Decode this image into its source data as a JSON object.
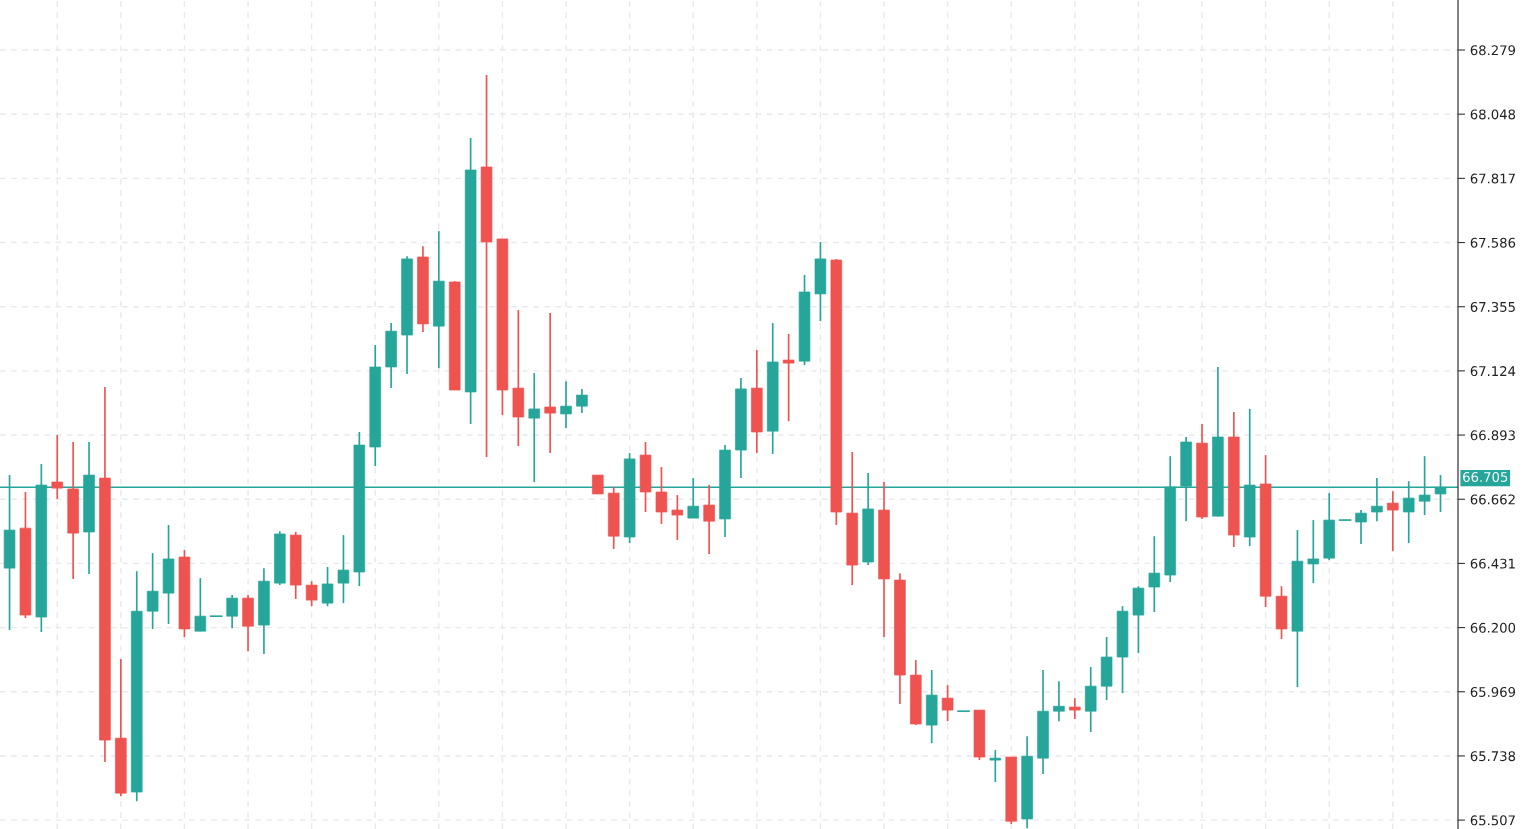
{
  "chart_data": {
    "type": "candlestick",
    "categories": [
      null,
      null,
      null,
      null,
      null,
      null,
      null,
      null,
      null,
      null,
      null,
      null,
      null,
      null,
      null,
      null,
      null,
      null,
      null,
      null,
      null,
      null,
      null,
      null,
      null,
      null,
      null,
      null,
      null,
      null,
      null,
      null,
      null,
      null,
      null,
      null,
      null,
      null,
      null,
      null,
      null,
      null,
      null,
      null,
      null,
      null,
      null,
      null,
      null,
      null,
      null,
      null,
      null,
      null,
      null,
      null,
      null,
      null,
      null,
      null,
      null,
      null,
      null,
      null,
      null,
      null,
      null,
      null,
      null,
      null,
      null,
      null,
      null,
      null,
      null,
      null,
      null,
      null,
      null,
      null,
      null,
      null,
      null,
      null,
      null,
      null,
      null,
      null,
      null,
      null,
      null
    ],
    "ohlc": [
      [
        66.414,
        66.749,
        66.191,
        66.551
      ],
      [
        66.558,
        66.688,
        66.234,
        66.245
      ],
      [
        66.238,
        66.789,
        66.184,
        66.713
      ],
      [
        66.724,
        66.893,
        66.663,
        66.702
      ],
      [
        66.699,
        66.868,
        66.375,
        66.54
      ],
      [
        66.544,
        66.868,
        66.393,
        66.749
      ],
      [
        66.738,
        67.066,
        65.716,
        65.795
      ],
      [
        65.802,
        66.087,
        65.593,
        65.604
      ],
      [
        65.608,
        66.403,
        65.575,
        66.259
      ],
      [
        66.259,
        66.468,
        66.195,
        66.331
      ],
      [
        66.324,
        66.569,
        66.213,
        66.447
      ],
      [
        66.454,
        66.479,
        66.166,
        66.195
      ],
      [
        66.187,
        66.378,
        66.187,
        66.241
      ],
      [
        66.241,
        66.241,
        66.241,
        66.241
      ],
      [
        66.241,
        66.317,
        66.198,
        66.306
      ],
      [
        66.306,
        66.317,
        66.115,
        66.205
      ],
      [
        66.209,
        66.414,
        66.105,
        66.367
      ],
      [
        66.36,
        66.547,
        66.353,
        66.537
      ],
      [
        66.533,
        66.544,
        66.303,
        66.353
      ],
      [
        66.353,
        66.367,
        66.277,
        66.299
      ],
      [
        66.288,
        66.418,
        66.277,
        66.357
      ],
      [
        66.36,
        66.533,
        66.288,
        66.407
      ],
      [
        66.4,
        66.904,
        66.349,
        66.857
      ],
      [
        66.85,
        67.217,
        66.781,
        67.138
      ],
      [
        67.138,
        67.296,
        67.062,
        67.267
      ],
      [
        67.253,
        67.537,
        67.113,
        67.527
      ],
      [
        67.534,
        67.573,
        67.264,
        67.293
      ],
      [
        67.285,
        67.627,
        67.134,
        67.447
      ],
      [
        67.444,
        67.447,
        67.055,
        67.055
      ],
      [
        67.048,
        67.962,
        66.933,
        67.847
      ],
      [
        67.858,
        68.189,
        66.814,
        67.588
      ],
      [
        67.599,
        67.599,
        66.965,
        67.055
      ],
      [
        67.062,
        67.343,
        66.853,
        66.958
      ],
      [
        66.954,
        67.116,
        66.724,
        66.987
      ],
      [
        66.994,
        67.332,
        66.828,
        66.972
      ],
      [
        66.969,
        67.087,
        66.918,
        66.997
      ],
      [
        66.997,
        67.059,
        66.972,
        67.037
      ],
      [
        66.749,
        66.749,
        66.681,
        66.681
      ],
      [
        66.684,
        66.706,
        66.483,
        66.529
      ],
      [
        66.526,
        66.828,
        66.504,
        66.807
      ],
      [
        66.821,
        66.868,
        66.616,
        66.688
      ],
      [
        66.688,
        66.778,
        66.573,
        66.616
      ],
      [
        66.623,
        66.677,
        66.515,
        66.605
      ],
      [
        66.594,
        66.738,
        66.594,
        66.637
      ],
      [
        66.641,
        66.713,
        66.465,
        66.583
      ],
      [
        66.591,
        66.857,
        66.526,
        66.839
      ],
      [
        66.839,
        67.098,
        66.738,
        67.059
      ],
      [
        67.062,
        67.199,
        66.828,
        66.904
      ],
      [
        66.907,
        67.296,
        66.825,
        67.156
      ],
      [
        67.163,
        67.257,
        66.943,
        67.152
      ],
      [
        67.159,
        67.469,
        67.145,
        67.408
      ],
      [
        67.401,
        67.588,
        67.303,
        67.527
      ],
      [
        67.523,
        67.527,
        66.569,
        66.616
      ],
      [
        66.612,
        66.832,
        66.353,
        66.425
      ],
      [
        66.436,
        66.756,
        66.425,
        66.627
      ],
      [
        66.623,
        66.724,
        66.166,
        66.375
      ],
      [
        66.371,
        66.396,
        65.925,
        66.029
      ],
      [
        66.029,
        66.083,
        65.849,
        65.853
      ],
      [
        65.849,
        66.047,
        65.784,
        65.957
      ],
      [
        65.946,
        65.993,
        65.863,
        65.903
      ],
      [
        65.899,
        65.899,
        65.899,
        65.899
      ],
      [
        65.903,
        65.903,
        65.723,
        65.734
      ],
      [
        65.723,
        65.759,
        65.644,
        65.73
      ],
      [
        65.734,
        65.734,
        65.493,
        65.503
      ],
      [
        65.511,
        65.809,
        65.478,
        65.737
      ],
      [
        65.73,
        66.047,
        65.673,
        65.899
      ],
      [
        65.899,
        66.007,
        65.863,
        65.917
      ],
      [
        65.914,
        65.946,
        65.871,
        65.903
      ],
      [
        65.899,
        66.058,
        65.824,
        65.989
      ],
      [
        65.989,
        66.166,
        65.939,
        66.094
      ],
      [
        66.094,
        66.277,
        65.964,
        66.259
      ],
      [
        66.245,
        66.349,
        66.108,
        66.342
      ],
      [
        66.346,
        66.529,
        66.256,
        66.396
      ],
      [
        66.389,
        66.817,
        66.364,
        66.706
      ],
      [
        66.709,
        66.886,
        66.583,
        66.868
      ],
      [
        66.864,
        66.933,
        66.591,
        66.598
      ],
      [
        66.601,
        67.138,
        66.601,
        66.886
      ],
      [
        66.886,
        66.976,
        66.49,
        66.533
      ],
      [
        66.526,
        66.987,
        66.493,
        66.713
      ],
      [
        66.717,
        66.821,
        66.274,
        66.313
      ],
      [
        66.313,
        66.349,
        66.159,
        66.195
      ],
      [
        66.187,
        66.551,
        65.986,
        66.439
      ],
      [
        66.429,
        66.587,
        66.36,
        66.447
      ],
      [
        66.45,
        66.684,
        66.443,
        66.587
      ],
      [
        66.587,
        66.587,
        66.587,
        66.587
      ],
      [
        66.58,
        66.623,
        66.501,
        66.612
      ],
      [
        66.616,
        66.738,
        66.583,
        66.637
      ],
      [
        66.648,
        66.691,
        66.475,
        66.623
      ],
      [
        66.616,
        66.727,
        66.504,
        66.666
      ],
      [
        66.655,
        66.817,
        66.605,
        66.677
      ],
      [
        66.681,
        66.749,
        66.616,
        66.705
      ]
    ],
    "colors": [
      "#26a69a",
      "#ef5350",
      "#26a69a",
      "#ef5350",
      "#ef5350",
      "#26a69a",
      "#ef5350",
      "#ef5350",
      "#26a69a",
      "#26a69a",
      "#26a69a",
      "#ef5350",
      "#26a69a",
      "#26a69a",
      "#26a69a",
      "#ef5350",
      "#26a69a",
      "#26a69a",
      "#ef5350",
      "#ef5350",
      "#26a69a",
      "#26a69a",
      "#26a69a",
      "#26a69a",
      "#26a69a",
      "#26a69a",
      "#ef5350",
      "#26a69a",
      "#ef5350",
      "#26a69a",
      "#ef5350",
      "#ef5350",
      "#ef5350",
      "#26a69a",
      "#ef5350",
      "#26a69a",
      "#26a69a",
      "#ef5350",
      "#ef5350",
      "#26a69a",
      "#ef5350",
      "#ef5350",
      "#ef5350",
      "#26a69a",
      "#ef5350",
      "#26a69a",
      "#26a69a",
      "#ef5350",
      "#26a69a",
      "#ef5350",
      "#26a69a",
      "#26a69a",
      "#ef5350",
      "#ef5350",
      "#26a69a",
      "#ef5350",
      "#ef5350",
      "#ef5350",
      "#26a69a",
      "#ef5350",
      "#26a69a",
      "#ef5350",
      "#26a69a",
      "#ef5350",
      "#26a69a",
      "#26a69a",
      "#26a69a",
      "#ef5350",
      "#26a69a",
      "#26a69a",
      "#26a69a",
      "#26a69a",
      "#26a69a",
      "#26a69a",
      "#26a69a",
      "#ef5350",
      "#26a69a",
      "#ef5350",
      "#26a69a",
      "#ef5350",
      "#ef5350",
      "#26a69a",
      "#26a69a",
      "#26a69a",
      "#26a69a",
      "#26a69a",
      "#26a69a",
      "#ef5350",
      "#26a69a",
      "#26a69a",
      "#26a69a"
    ],
    "ylim": [
      65.475,
      68.459
    ],
    "yticks": [
      65.507,
      65.738,
      65.969,
      {
        "value": 66.2,
        "label": "66.200"
      },
      66.431,
      66.662,
      66.893,
      67.124,
      67.355,
      67.586,
      67.817,
      68.048,
      68.279
    ],
    "ref_lines": [
      {
        "axis": "y",
        "value": 66.705,
        "label": "66.705",
        "color": "#26a69a"
      }
    ],
    "grid": true,
    "tick_labels": "y"
  }
}
